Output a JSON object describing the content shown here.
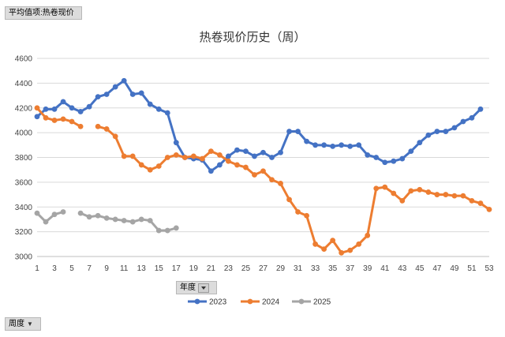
{
  "pivot": {
    "value_field_label": "平均值项:热卷现价",
    "year_filter_label": "年度",
    "week_filter_label": "周度"
  },
  "chart_data": {
    "type": "line",
    "title": "热卷现价历史（周）",
    "xlabel": "",
    "ylabel": "",
    "x": [
      1,
      2,
      3,
      4,
      5,
      6,
      7,
      8,
      9,
      10,
      11,
      12,
      13,
      14,
      15,
      16,
      17,
      18,
      19,
      20,
      21,
      22,
      23,
      24,
      25,
      26,
      27,
      28,
      29,
      30,
      31,
      32,
      33,
      34,
      35,
      36,
      37,
      38,
      39,
      40,
      41,
      42,
      43,
      44,
      45,
      46,
      47,
      48,
      49,
      50,
      51,
      52,
      53
    ],
    "xticks": [
      1,
      3,
      5,
      7,
      9,
      11,
      13,
      15,
      17,
      19,
      21,
      23,
      25,
      27,
      29,
      31,
      33,
      35,
      37,
      39,
      41,
      43,
      45,
      47,
      49,
      51,
      53
    ],
    "xlim": [
      1,
      53
    ],
    "ylim": [
      3000,
      4600
    ],
    "yticks": [
      3000,
      3200,
      3400,
      3600,
      3800,
      4000,
      4200,
      4400,
      4600
    ],
    "grid": true,
    "legend_position": "bottom",
    "series": [
      {
        "name": "2023",
        "color": "#4472C4",
        "values": [
          4130,
          4190,
          4190,
          4250,
          4200,
          4170,
          4210,
          4290,
          4310,
          4370,
          4420,
          4310,
          4320,
          4230,
          4190,
          4160,
          3920,
          3800,
          3790,
          3780,
          3690,
          3740,
          3810,
          3860,
          3850,
          3810,
          3840,
          3800,
          3840,
          4010,
          4010,
          3930,
          3900,
          3900,
          3890,
          3900,
          3890,
          3900,
          3820,
          3800,
          3760,
          3770,
          3790,
          3850,
          3920,
          3980,
          4010,
          4010,
          4040,
          4090,
          4120,
          4190,
          null
        ]
      },
      {
        "name": "2024",
        "color": "#ED7D31",
        "values": [
          4200,
          4120,
          4100,
          4110,
          4090,
          4050,
          null,
          4050,
          4030,
          3970,
          3810,
          3810,
          3740,
          3700,
          3730,
          3800,
          3820,
          3800,
          3810,
          3790,
          3850,
          3820,
          3770,
          3740,
          3720,
          3660,
          3690,
          3620,
          3590,
          3460,
          3360,
          3330,
          3100,
          3060,
          3130,
          3030,
          3050,
          3100,
          3170,
          3550,
          3560,
          3510,
          3450,
          3530,
          3540,
          3520,
          3500,
          3500,
          3490,
          3490,
          3450,
          3430,
          3380
        ]
      },
      {
        "name": "2025",
        "color": "#A5A5A5",
        "values": [
          3350,
          3280,
          3340,
          3360,
          null,
          3350,
          3320,
          3330,
          3310,
          3300,
          3290,
          3280,
          3300,
          3290,
          3210,
          3210,
          3230,
          null,
          null,
          null,
          null,
          null,
          null,
          null,
          null,
          null,
          null,
          null,
          null,
          null,
          null,
          null,
          null,
          null,
          null,
          null,
          null,
          null,
          null,
          null,
          null,
          null,
          null,
          null,
          null,
          null,
          null,
          null,
          null,
          null,
          null,
          null,
          null
        ]
      }
    ]
  }
}
